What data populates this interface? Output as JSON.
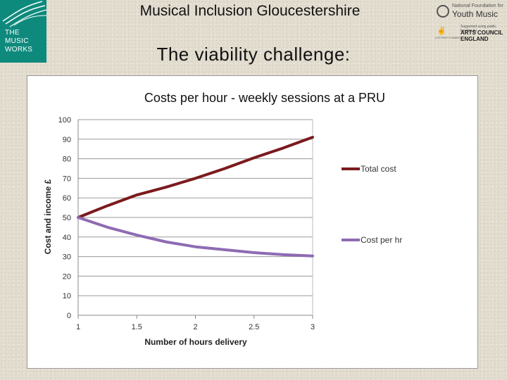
{
  "header": {
    "title": "Musical Inclusion Gloucestershire",
    "subtitle": "The viability challenge:"
  },
  "logos": {
    "left": {
      "lines": [
        "THE",
        "MUSIC",
        "WORKS"
      ],
      "color": "#0e8a7d"
    },
    "right": {
      "youth_music_small": "National Foundation for",
      "youth_music": "Youth Music",
      "ace_small": "Supported using public funding by",
      "ace_lines": [
        "ARTS COUNCIL",
        "ENGLAND"
      ],
      "lottery": "LOTTERY FUNDED"
    }
  },
  "chart_data": {
    "type": "line",
    "title": "Costs per hour - weekly sessions at a PRU",
    "xlabel": "Number of hours delivery",
    "ylabel": "Cost and income £",
    "x": [
      1,
      1.25,
      1.5,
      1.75,
      2,
      2.25,
      2.5,
      2.75,
      3
    ],
    "xticks": [
      1,
      1.5,
      2,
      2.5,
      3
    ],
    "xlim": [
      1,
      3
    ],
    "ylim": [
      0,
      100
    ],
    "yticks": [
      0,
      10,
      20,
      30,
      40,
      50,
      60,
      70,
      80,
      90,
      100
    ],
    "grid": true,
    "legend_position": "right",
    "series": [
      {
        "name": "Total cost",
        "color": "#7b1a1e",
        "values": [
          50,
          56,
          61.5,
          65.5,
          70,
          75,
          80.5,
          85.5,
          91
        ]
      },
      {
        "name": "Cost per hr",
        "color": "#8e6bb3",
        "values": [
          50,
          45,
          41,
          37.5,
          35,
          33.5,
          32,
          31,
          30.3
        ]
      }
    ]
  }
}
